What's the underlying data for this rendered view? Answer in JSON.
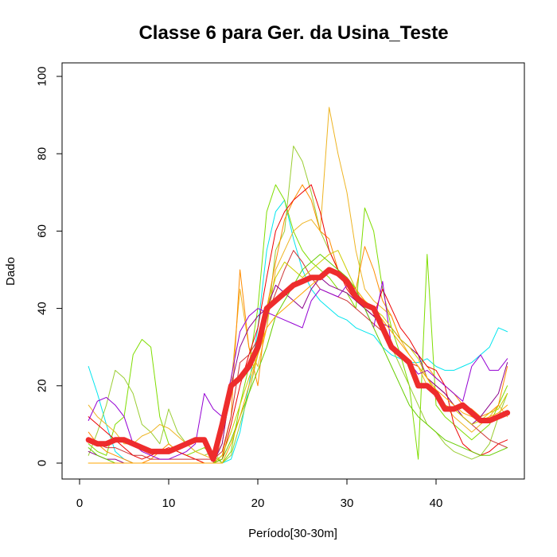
{
  "chart_data": {
    "type": "line",
    "title": "Classe  6 para Ger. da Usina_Teste",
    "xlabel": "Período[30-30m]",
    "ylabel": "Dado",
    "xlim": [
      1,
      48
    ],
    "ylim": [
      0,
      100
    ],
    "xticks": [
      0,
      10,
      20,
      30,
      40
    ],
    "yticks": [
      0,
      20,
      40,
      60,
      80,
      100
    ],
    "grid": false,
    "legend": "none",
    "x": [
      1,
      2,
      3,
      4,
      5,
      6,
      7,
      8,
      9,
      10,
      11,
      12,
      13,
      14,
      15,
      16,
      17,
      18,
      19,
      20,
      21,
      22,
      23,
      24,
      25,
      26,
      27,
      28,
      29,
      30,
      31,
      32,
      33,
      34,
      35,
      36,
      37,
      38,
      39,
      40,
      41,
      42,
      43,
      44,
      45,
      46,
      47,
      48
    ],
    "series": [
      {
        "color": "#00E5EE",
        "width": 1,
        "values": [
          25,
          18,
          10,
          3,
          1,
          0,
          0,
          0,
          0,
          0,
          0,
          0,
          0,
          0,
          0,
          0,
          1,
          8,
          20,
          35,
          55,
          65,
          68,
          58,
          50,
          45,
          42,
          40,
          38,
          37,
          35,
          34,
          33,
          30,
          28,
          27,
          26,
          26,
          27,
          25,
          24,
          24,
          25,
          26,
          28,
          30,
          35,
          34
        ]
      },
      {
        "color": "#7FDD00",
        "width": 1,
        "values": [
          5,
          3,
          2,
          10,
          12,
          28,
          32,
          30,
          12,
          5,
          3,
          2,
          3,
          4,
          2,
          0,
          3,
          15,
          25,
          40,
          65,
          72,
          68,
          60,
          55,
          52,
          50,
          48,
          45,
          44,
          40,
          66,
          60,
          45,
          35,
          28,
          20,
          1,
          54,
          15,
          12,
          10,
          8,
          6,
          8,
          10,
          15,
          20
        ]
      },
      {
        "color": "#9ACD32",
        "width": 1,
        "values": [
          2,
          8,
          15,
          24,
          22,
          18,
          10,
          8,
          5,
          14,
          8,
          5,
          3,
          2,
          3,
          0,
          2,
          10,
          18,
          28,
          35,
          55,
          60,
          82,
          78,
          70,
          60,
          55,
          50,
          48,
          45,
          40,
          38,
          35,
          30,
          25,
          20,
          15,
          10,
          8,
          5,
          3,
          2,
          1,
          2,
          5,
          12,
          18
        ]
      },
      {
        "color": "#EEB422",
        "width": 1,
        "values": [
          15,
          12,
          10,
          8,
          5,
          5,
          7,
          8,
          10,
          9,
          7,
          5,
          3,
          2,
          1,
          5,
          20,
          45,
          30,
          25,
          35,
          50,
          55,
          60,
          62,
          63,
          60,
          92,
          80,
          70,
          55,
          45,
          42,
          40,
          38,
          32,
          28,
          25,
          20,
          18,
          15,
          12,
          10,
          8,
          10,
          12,
          15,
          12
        ]
      },
      {
        "color": "#FF8C00",
        "width": 1,
        "values": [
          8,
          5,
          3,
          2,
          1,
          0,
          0,
          1,
          3,
          5,
          3,
          2,
          1,
          0,
          0,
          2,
          12,
          50,
          30,
          20,
          40,
          52,
          63,
          68,
          72,
          68,
          60,
          58,
          50,
          48,
          45,
          56,
          50,
          42,
          38,
          32,
          30,
          28,
          25,
          22,
          20,
          18,
          15,
          14,
          12,
          13,
          15,
          25
        ]
      },
      {
        "color": "#EE0000",
        "width": 1,
        "values": [
          12,
          10,
          8,
          6,
          4,
          2,
          1,
          2,
          3,
          4,
          3,
          2,
          1,
          0,
          0,
          1,
          10,
          20,
          28,
          35,
          48,
          60,
          65,
          68,
          70,
          72,
          65,
          55,
          50,
          45,
          42,
          40,
          38,
          45,
          40,
          35,
          32,
          28,
          25,
          24,
          20,
          10,
          5,
          3,
          2,
          3,
          5,
          6
        ]
      },
      {
        "color": "#CD3333",
        "width": 1,
        "values": [
          6,
          5,
          4,
          4,
          3,
          2,
          2,
          1,
          1,
          1,
          1,
          1,
          1,
          1,
          1,
          3,
          12,
          26,
          28,
          32,
          38,
          44,
          50,
          55,
          52,
          48,
          45,
          44,
          43,
          42,
          40,
          38,
          36,
          34,
          30,
          28,
          26,
          25,
          22,
          20,
          18,
          15,
          12,
          10,
          8,
          6,
          5,
          4
        ]
      },
      {
        "color": "#9400D3",
        "width": 1,
        "values": [
          11,
          16,
          17,
          15,
          12,
          5,
          3,
          2,
          1,
          1,
          2,
          3,
          5,
          18,
          14,
          12,
          22,
          34,
          38,
          40,
          39,
          38,
          37,
          36,
          35,
          42,
          45,
          44,
          43,
          46,
          45,
          40,
          35,
          47,
          30,
          28,
          26,
          23,
          24,
          22,
          20,
          18,
          16,
          25,
          28,
          24,
          24,
          27
        ]
      },
      {
        "color": "#8B008B",
        "width": 1,
        "values": [
          3,
          2,
          1,
          1,
          0,
          0,
          0,
          0,
          0,
          0,
          0,
          0,
          0,
          0,
          0,
          5,
          20,
          30,
          35,
          38,
          40,
          46,
          44,
          42,
          40,
          45,
          48,
          46,
          45,
          44,
          42,
          40,
          38,
          36,
          35,
          32,
          30,
          28,
          22,
          20,
          18,
          15,
          12,
          10,
          12,
          15,
          18,
          26
        ]
      },
      {
        "color": "#CDCD00",
        "width": 1,
        "values": [
          0,
          0,
          0,
          0,
          0,
          0,
          0,
          0,
          0,
          0,
          0,
          0,
          0,
          0,
          0,
          2,
          8,
          15,
          22,
          28,
          40,
          48,
          52,
          50,
          48,
          50,
          52,
          54,
          55,
          50,
          45,
          42,
          40,
          38,
          35,
          32,
          30,
          27,
          22,
          18,
          15,
          14,
          12,
          10,
          11,
          13,
          14,
          18
        ]
      },
      {
        "color": "#66CD00",
        "width": 1,
        "values": [
          4,
          2,
          1,
          0,
          0,
          0,
          0,
          0,
          0,
          0,
          0,
          0,
          0,
          0,
          0,
          1,
          6,
          12,
          18,
          24,
          30,
          38,
          42,
          46,
          50,
          52,
          54,
          52,
          50,
          48,
          45,
          40,
          35,
          30,
          25,
          20,
          15,
          12,
          10,
          8,
          6,
          5,
          4,
          3,
          2,
          2,
          3,
          4
        ]
      },
      {
        "color": "#FFA500",
        "width": 1,
        "values": [
          0,
          0,
          0,
          0,
          0,
          0,
          0,
          0,
          0,
          0,
          0,
          0,
          0,
          0,
          0,
          0,
          5,
          12,
          20,
          28,
          35,
          38,
          40,
          42,
          44,
          46,
          48,
          50,
          49,
          47,
          45,
          42,
          40,
          37,
          34,
          31,
          28,
          25,
          22,
          19,
          17,
          15,
          13,
          12,
          11,
          12,
          13,
          15
        ]
      },
      {
        "color": "#EE2C2C",
        "width": 7,
        "values": [
          6,
          5,
          5,
          6,
          6,
          5,
          4,
          3,
          3,
          3,
          4,
          5,
          6,
          6,
          1,
          10,
          20,
          22,
          25,
          30,
          40,
          42,
          44,
          46,
          47,
          48,
          48,
          50,
          49,
          47,
          43,
          41,
          40,
          35,
          30,
          28,
          26,
          20,
          20,
          18,
          14,
          14,
          15,
          13,
          11,
          11,
          12,
          13
        ]
      }
    ]
  }
}
